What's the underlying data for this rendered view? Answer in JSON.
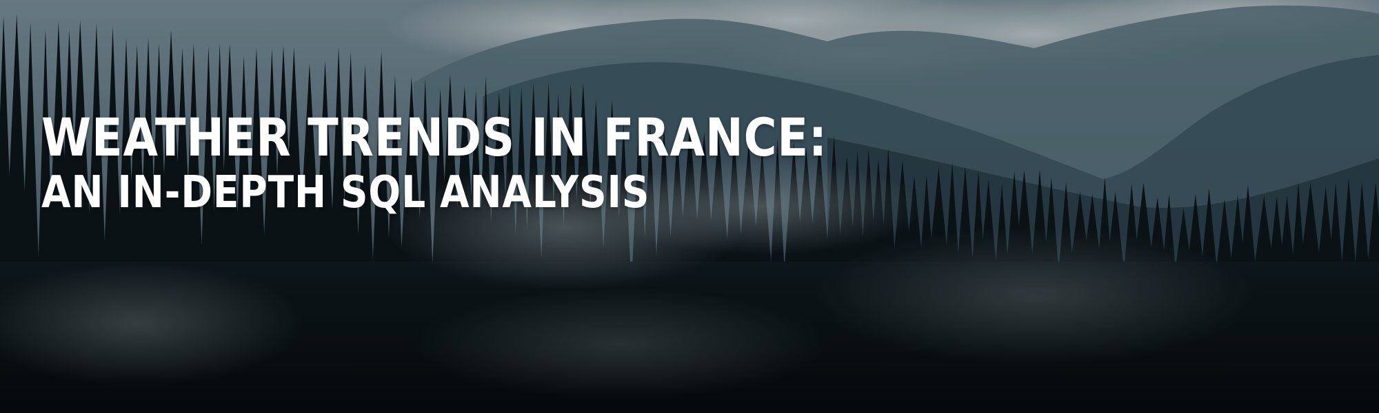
{
  "banner": {
    "title_line_1": "WEATHER TRENDS IN FRANCE:",
    "title_line_2": "AN IN-DEPTH SQL ANALYSIS"
  },
  "scene": {
    "description_icon": "misty-forest-mountains-photo",
    "colors": {
      "sky": "#6f8591",
      "cloud": "#c9d3d6",
      "far_mountain": "#4f6b77",
      "mid_mountain": "#3a5561",
      "forest_dark": "#0b1418",
      "fog": "#aab8bd"
    }
  }
}
